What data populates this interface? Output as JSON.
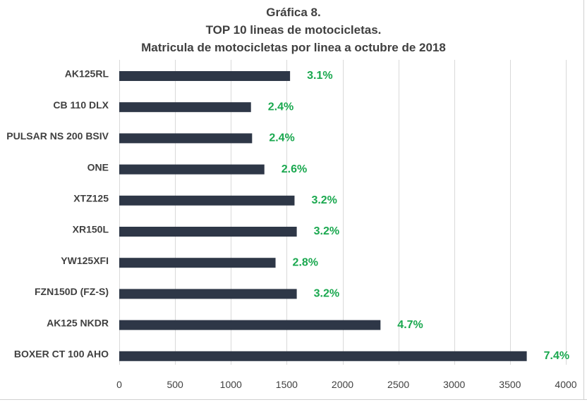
{
  "chart_data": {
    "type": "bar",
    "orientation": "horizontal",
    "title": [
      "Gráfica 8.",
      "TOP 10 lineas de motocicletas.",
      "Matricula de motocicletas por linea a octubre de 2018"
    ],
    "categories": [
      "AK125RL",
      "CB 110 DLX",
      "PULSAR NS 200 BSIV",
      "ONE",
      "XTZ125",
      "XR150L",
      "YW125XFI",
      "FZN150D (FZ-S)",
      "AK125 NKDR",
      "BOXER CT 100 AHO"
    ],
    "values": [
      1530,
      1180,
      1190,
      1300,
      1570,
      1590,
      1400,
      1590,
      2340,
      3650
    ],
    "data_labels": [
      "3.1%",
      "2.4%",
      "2.4%",
      "2.6%",
      "3.2%",
      "3.2%",
      "2.8%",
      "3.2%",
      "4.7%",
      "7.4%"
    ],
    "xlim": [
      0,
      4000
    ],
    "xticks": [
      "0",
      "500",
      "1000",
      "1500",
      "2000",
      "2500",
      "3000",
      "3500",
      "4000"
    ],
    "xlabel": "",
    "ylabel": "",
    "grid": "vertical",
    "legend": "none",
    "colors": {
      "bar": "#2e3747",
      "label": "#1aa84f",
      "grid": "#d9d9d9",
      "text": "#404040"
    }
  }
}
